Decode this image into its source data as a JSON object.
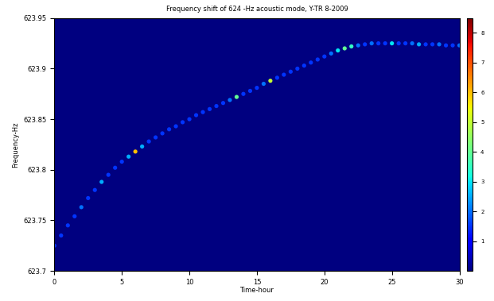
{
  "chart_data": {
    "type": "scatter",
    "title": "Frequency shift of 624 -Hz acoustic mode, Y-TR 8-2009",
    "x_label": "Time-hour",
    "y_label": "Frequency-Hz",
    "x": [
      0,
      0.5,
      1,
      1.5,
      2,
      2.5,
      3,
      3.5,
      4,
      4.5,
      5,
      5.5,
      6,
      6.5,
      7,
      7.5,
      8,
      8.5,
      9,
      9.5,
      10,
      10.5,
      11,
      11.5,
      12,
      12.5,
      13,
      13.5,
      14,
      14.5,
      15,
      15.5,
      16,
      16.5,
      17,
      17.5,
      18,
      18.5,
      19,
      19.5,
      20,
      20.5,
      21,
      21.5,
      22,
      22.5,
      23,
      23.5,
      24,
      24.5,
      25,
      25.5,
      26,
      26.5,
      27,
      27.5,
      28,
      28.5,
      29,
      29.5,
      30
    ],
    "values": [
      623.725,
      623.735,
      623.745,
      623.754,
      623.763,
      623.772,
      623.78,
      623.788,
      623.795,
      623.802,
      623.808,
      623.813,
      623.818,
      623.823,
      623.828,
      623.832,
      623.836,
      623.84,
      623.843,
      623.847,
      623.85,
      623.854,
      623.857,
      623.86,
      623.863,
      623.866,
      623.869,
      623.872,
      623.875,
      623.878,
      623.881,
      623.885,
      623.888,
      623.891,
      623.894,
      623.897,
      623.9,
      623.903,
      623.906,
      623.909,
      623.912,
      623.915,
      623.918,
      623.92,
      623.922,
      623.923,
      623.924,
      623.925,
      623.925,
      623.925,
      623.925,
      623.925,
      623.925,
      623.925,
      623.924,
      623.924,
      623.924,
      623.924,
      623.923,
      623.923,
      623.923
    ],
    "intensity": [
      1.5,
      1.5,
      1.5,
      1.5,
      2,
      1.5,
      1.5,
      2.5,
      1.5,
      1.5,
      1.5,
      2.5,
      6,
      2.5,
      1.5,
      1.5,
      1.5,
      1.5,
      1.5,
      1.5,
      1.5,
      1.5,
      1.5,
      1.5,
      1.5,
      1.5,
      2,
      4,
      1.5,
      1.5,
      1.5,
      2,
      5,
      1.5,
      1.5,
      1.5,
      1.5,
      1.5,
      1.5,
      1.5,
      1.5,
      2,
      3,
      4,
      3.5,
      2,
      1.5,
      2,
      1.5,
      1.5,
      3,
      1.5,
      1.5,
      2,
      2.5,
      1.5,
      1.5,
      2,
      1.5,
      1.5,
      2
    ],
    "xlim": [
      0,
      30
    ],
    "xticks": [
      0,
      5,
      10,
      15,
      20,
      25,
      30
    ],
    "ylim": [
      623.7,
      623.95
    ],
    "yticks": [
      623.7,
      623.75,
      623.8,
      623.85,
      623.9,
      623.95
    ],
    "colorbar_lim": [
      0,
      8.5
    ],
    "colorbar_ticks": [
      1,
      2,
      3,
      4,
      5,
      6,
      7,
      8
    ],
    "marker": "o"
  }
}
